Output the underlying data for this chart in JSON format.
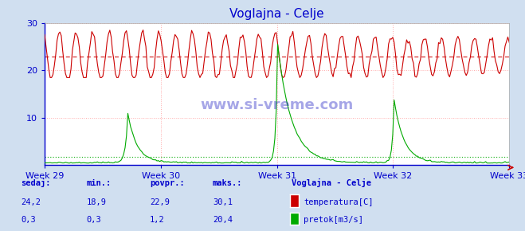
{
  "title": "Voglajna - Celje",
  "title_color": "#0000cc",
  "bg_color": "#d0dff0",
  "plot_bg_color": "#ffffff",
  "grid_color": "#ffaaaa",
  "border_color": "#0000cc",
  "xlabel_color": "#0000cc",
  "ylabel_color": "#0000cc",
  "temp_color": "#cc0000",
  "flow_color": "#00aa00",
  "weeks": [
    "Week 29",
    "Week 30",
    "Week 31",
    "Week 32",
    "Week 33"
  ],
  "ylim": [
    0,
    30
  ],
  "yticks": [
    10,
    20,
    30
  ],
  "n_points": 336,
  "avg_temp": 22.9,
  "avg_flow": 1.2,
  "flow_max_scale": 20.4,
  "watermark": "www.si-vreme.com",
  "watermark_color": "#0000bb",
  "legend_title": "Voglajna - Celje",
  "table_color": "#0000cc",
  "table_headers": [
    "sedaj:",
    "min.:",
    "povpr.:",
    "maks.:"
  ],
  "row1_values": [
    "24,2",
    "18,9",
    "22,9",
    "30,1"
  ],
  "row2_values": [
    "0,3",
    "0,3",
    "1,2",
    "20,4"
  ],
  "legend_labels": [
    "temperatura[C]",
    "pretok[m3/s]"
  ],
  "legend_colors": [
    "#cc0000",
    "#00aa00"
  ]
}
